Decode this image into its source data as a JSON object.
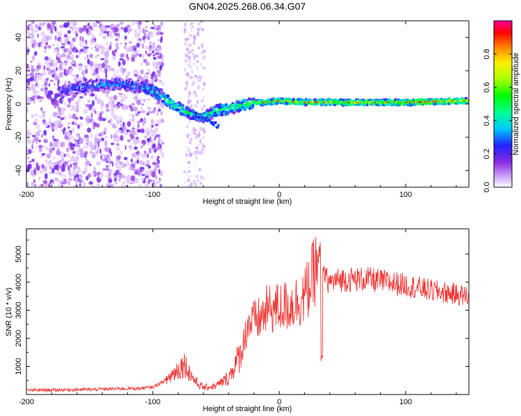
{
  "title": "GN04.2025.268.06.34.G07",
  "chart_data": [
    {
      "type": "heatmap",
      "name": "spectrogram",
      "xlabel": "Height of straight line (km)",
      "ylabel": "Frequency (Hz)",
      "xlim": [
        -200,
        150
      ],
      "ylim": [
        -50,
        50
      ],
      "xticks": [
        -200,
        -100,
        0,
        100
      ],
      "yticks": [
        -40,
        -20,
        0,
        20,
        40
      ],
      "colorbar": {
        "label": "Normalized spectral amplitude",
        "range": [
          0,
          1
        ],
        "ticks": [
          0.0,
          0.2,
          0.4,
          0.6,
          0.8
        ],
        "tick_labels": [
          "0.0",
          "0.2",
          "0.4",
          "0.6",
          "0.8"
        ]
      },
      "ridge": {
        "x": [
          -170,
          -150,
          -130,
          -110,
          -100,
          -90,
          -80,
          -70,
          -60,
          -50,
          -40,
          -30,
          -20,
          -10,
          0,
          20,
          50,
          100,
          150
        ],
        "frequency_hz": [
          8,
          11,
          12,
          10,
          8,
          3,
          -2,
          -6,
          -8,
          -4,
          -3,
          -1,
          1,
          1,
          2,
          1,
          1,
          1,
          2
        ],
        "amplitude": [
          0.2,
          0.25,
          0.3,
          0.3,
          0.35,
          0.45,
          0.45,
          0.45,
          0.4,
          0.45,
          0.45,
          0.5,
          0.55,
          0.6,
          0.6,
          0.65,
          0.65,
          0.65,
          0.7
        ]
      }
    },
    {
      "type": "line",
      "name": "snr",
      "xlabel": "Height of straight line (km)",
      "ylabel": "SNR (10 * v/v)",
      "xlim": [
        -200,
        150
      ],
      "ylim": [
        0,
        5900
      ],
      "xticks": [
        -200,
        -100,
        0,
        100
      ],
      "yticks": [
        1000,
        2000,
        3000,
        4000,
        5000
      ],
      "color": "#ee3333",
      "envelope": {
        "x": [
          -200,
          -150,
          -110,
          -100,
          -90,
          -80,
          -75,
          -70,
          -65,
          -60,
          -50,
          -40,
          -30,
          -25,
          -20,
          -15,
          -10,
          0,
          10,
          20,
          25,
          30,
          33,
          35,
          40,
          50,
          70,
          100,
          120,
          150
        ],
        "snr": [
          150,
          180,
          220,
          260,
          500,
          900,
          1100,
          700,
          400,
          250,
          300,
          600,
          1500,
          2500,
          2600,
          2700,
          3000,
          3100,
          3200,
          3500,
          4000,
          4700,
          5000,
          4200,
          4000,
          4100,
          4100,
          3900,
          3700,
          3500
        ]
      }
    }
  ]
}
